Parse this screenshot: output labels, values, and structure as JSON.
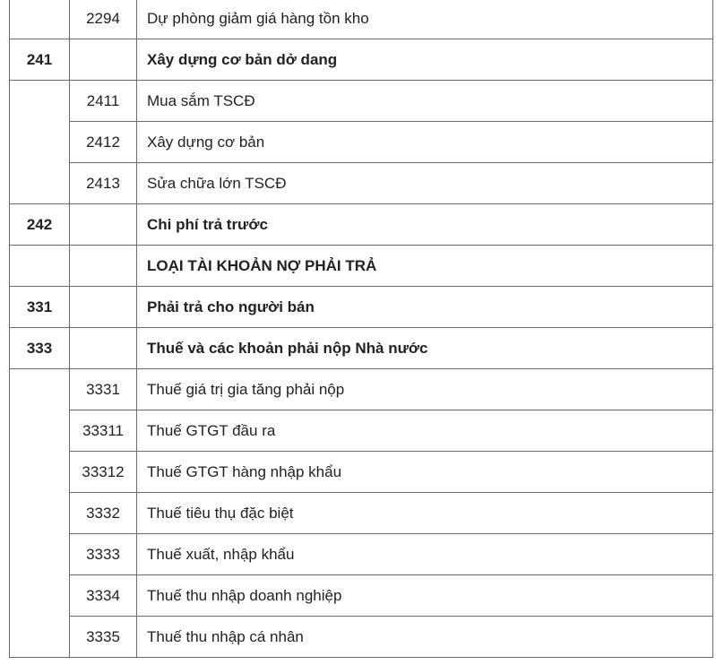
{
  "rows": [
    {
      "code": "",
      "sub": "2294",
      "name": "Dự phòng giảm giá hàng tồn kho",
      "bold": false
    },
    {
      "code": "241",
      "sub": "",
      "name": "Xây dựng cơ bản dở dang",
      "bold": true
    },
    {
      "code": "",
      "sub": "2411",
      "name": "Mua sắm TSCĐ",
      "bold": false,
      "span": 3
    },
    {
      "sub": "2412",
      "name": "Xây dựng cơ bản",
      "bold": false,
      "merged": true
    },
    {
      "sub": "2413",
      "name": "Sửa chữa lớn TSCĐ",
      "bold": false,
      "merged": true
    },
    {
      "code": "242",
      "sub": "",
      "name": "Chi phí trả trước",
      "bold": true
    },
    {
      "code": "",
      "sub": "",
      "name": "LOẠI TÀI KHOẢN NỢ PHẢI TRẢ",
      "bold": true
    },
    {
      "code": "331",
      "sub": "",
      "name": "Phải trả cho người bán",
      "bold": true
    },
    {
      "code": "333",
      "sub": "",
      "name": "Thuế và các khoản phải nộp Nhà nước",
      "bold": true
    },
    {
      "code": "",
      "sub": "3331",
      "name": "Thuế giá trị gia tăng phải nộp",
      "bold": false,
      "span": 8
    },
    {
      "sub": "33311",
      "name": "Thuế GTGT đầu ra",
      "bold": false,
      "merged": true
    },
    {
      "sub": "33312",
      "name": "Thuế GTGT hàng nhập khẩu",
      "bold": false,
      "merged": true
    },
    {
      "sub": "3332",
      "name": "Thuế tiêu thụ đặc biệt",
      "bold": false,
      "merged": true
    },
    {
      "sub": "3333",
      "name": "Thuế xuất, nhập khẩu",
      "bold": false,
      "merged": true
    },
    {
      "sub": "3334",
      "name": "Thuế thu nhập doanh nghiệp",
      "bold": false,
      "merged": true
    },
    {
      "sub": "3335",
      "name": "Thuế thu nhập cá nhân",
      "bold": false,
      "merged": true
    }
  ]
}
